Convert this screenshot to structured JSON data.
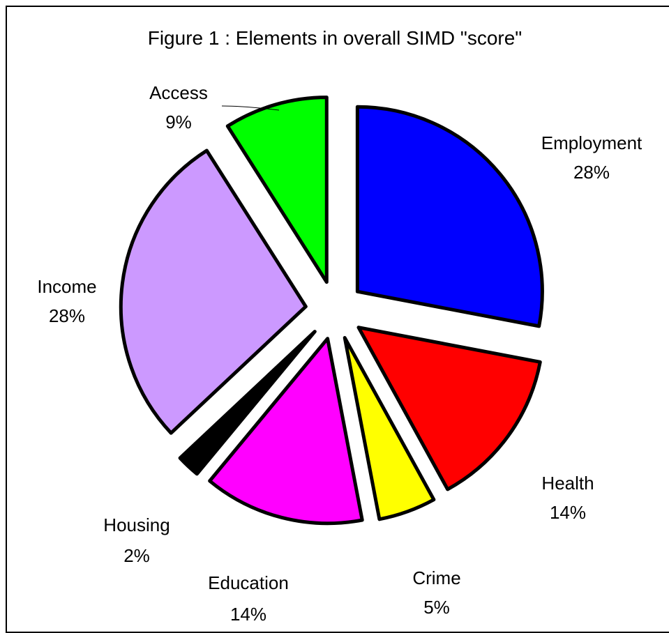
{
  "chart_data": {
    "type": "pie",
    "title": "Figure 1 : Elements in overall SIMD \"score\"",
    "exploded": true,
    "slices": [
      {
        "label": "Employment",
        "percent_label": "28%",
        "value": 28,
        "color": "#0000ff"
      },
      {
        "label": "Health",
        "percent_label": "14%",
        "value": 14,
        "color": "#ff0000"
      },
      {
        "label": "Crime",
        "percent_label": "5%",
        "value": 5,
        "color": "#ffff00"
      },
      {
        "label": "Education",
        "percent_label": "14%",
        "value": 14,
        "color": "#ff00ff"
      },
      {
        "label": "Housing",
        "percent_label": "2%",
        "value": 2,
        "color": "#000000"
      },
      {
        "label": "Income",
        "percent_label": "28%",
        "value": 28,
        "color": "#cc99ff"
      },
      {
        "label": "Access",
        "percent_label": "9%",
        "value": 9,
        "color": "#00ff00"
      }
    ]
  }
}
